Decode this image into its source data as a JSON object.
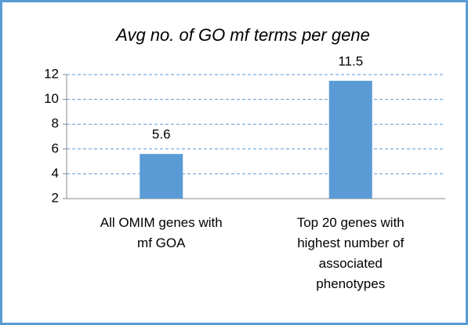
{
  "chart_data": {
    "type": "bar",
    "title": "Avg no. of GO mf terms per gene",
    "categories": [
      "All OMIM genes with mf GOA",
      "Top 20 genes with highest number of associated phenotypes"
    ],
    "values": [
      5.6,
      11.5
    ],
    "color": "#5b9bd5",
    "ylim": [
      2,
      12
    ],
    "yticks": [
      2,
      4,
      6,
      8,
      10,
      12
    ],
    "grid": true
  }
}
